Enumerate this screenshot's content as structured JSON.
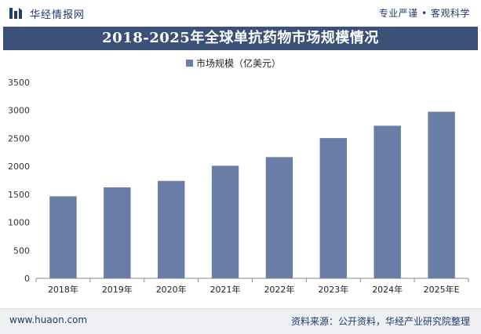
{
  "header": {
    "brand": "华经情报网",
    "tagline": "专业严谨 • 客观科学"
  },
  "chart_data": {
    "type": "bar",
    "title": "2018-2025年全球单抗药物市场规模情况",
    "categories": [
      "2018年",
      "2019年",
      "2020年",
      "2021年",
      "2022年",
      "2023年",
      "2024年",
      "2025年E"
    ],
    "series": [
      {
        "name": "市场规模（亿美元）",
        "values": [
          1465,
          1625,
          1740,
          2010,
          2165,
          2505,
          2725,
          2975
        ],
        "color": "#6a7da6"
      }
    ],
    "ylim": [
      0,
      3500
    ],
    "yticks": [
      0,
      500,
      1000,
      1500,
      2000,
      2500,
      3000,
      3500
    ],
    "legend_position": "top-center",
    "grid": false
  },
  "footer": {
    "url": "www.huaon.com",
    "source": "资料来源：公开资料，华经产业研究院整理"
  }
}
